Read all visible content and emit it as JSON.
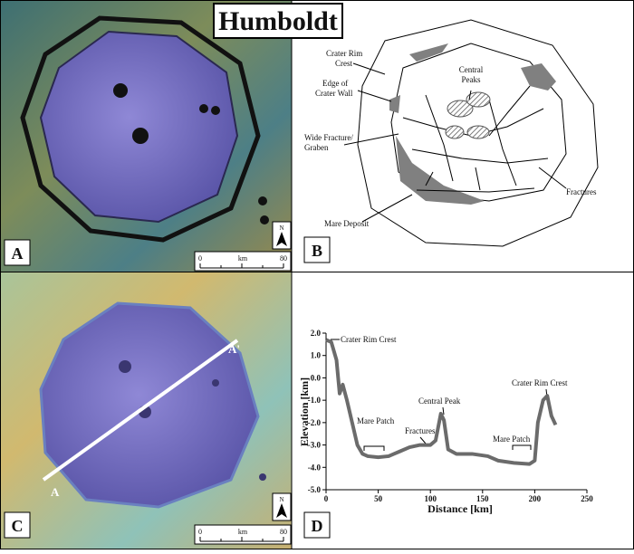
{
  "title": "Humboldt",
  "panels": {
    "A": {
      "label": "A",
      "north": "N",
      "scale_bar": {
        "min": 0,
        "unit": "km",
        "max": 80
      }
    },
    "B": {
      "label": "B",
      "annotations": {
        "rim": [
          "Crater Rim",
          "Crest"
        ],
        "wall": [
          "Edge of",
          "Crater Wall"
        ],
        "graben": [
          "Wide Fracture/",
          "Graben"
        ],
        "mare": [
          "Mare Deposit"
        ],
        "peaks": [
          "Central",
          "Peaks"
        ],
        "fractures": [
          "Fractures"
        ]
      }
    },
    "C": {
      "label": "C",
      "north": "N",
      "profile_start": "A",
      "profile_end": "A'",
      "scale_bar": {
        "min": 0,
        "unit": "km",
        "max": 80
      }
    },
    "D": {
      "label": "D"
    }
  },
  "chart_data": {
    "type": "line",
    "xlabel": "Distance [km]",
    "ylabel": "Elevation [km]",
    "x": [
      0,
      5,
      10,
      13,
      16,
      20,
      25,
      30,
      35,
      40,
      50,
      60,
      65,
      70,
      80,
      90,
      100,
      105,
      110,
      113,
      117,
      125,
      140,
      155,
      165,
      180,
      195,
      200,
      203,
      208,
      212,
      216,
      220
    ],
    "values": [
      1.7,
      1.6,
      0.8,
      -0.7,
      -0.3,
      -1.0,
      -2.0,
      -3.0,
      -3.4,
      -3.5,
      -3.55,
      -3.5,
      -3.4,
      -3.3,
      -3.1,
      -3.0,
      -3.0,
      -2.8,
      -1.6,
      -1.9,
      -3.2,
      -3.4,
      -3.4,
      -3.5,
      -3.7,
      -3.8,
      -3.85,
      -3.7,
      -2.0,
      -1.0,
      -0.8,
      -1.7,
      -2.1
    ],
    "color": "#6b6b6b",
    "xlim": [
      0,
      250
    ],
    "xticks": [
      0,
      50,
      100,
      150,
      200,
      250
    ],
    "ylim": [
      -5,
      2
    ],
    "yticks": [
      {
        "value": -5,
        "label": "-5.0"
      },
      {
        "value": -4,
        "label": "-4.0"
      },
      {
        "value": -3,
        "label": "-3.0"
      },
      {
        "value": -2,
        "label": "-2.0"
      },
      {
        "value": -1,
        "label": "-1.0"
      },
      {
        "value": 0,
        "label": "0.0"
      },
      {
        "value": 1,
        "label": "1.0"
      },
      {
        "value": 2,
        "label": "2.0"
      }
    ],
    "annotations": [
      "Crater Rim Crest",
      "Mare Patch",
      "Fractures",
      "Central Peak",
      "Mare Patch",
      "Crater Rim Crest"
    ]
  }
}
